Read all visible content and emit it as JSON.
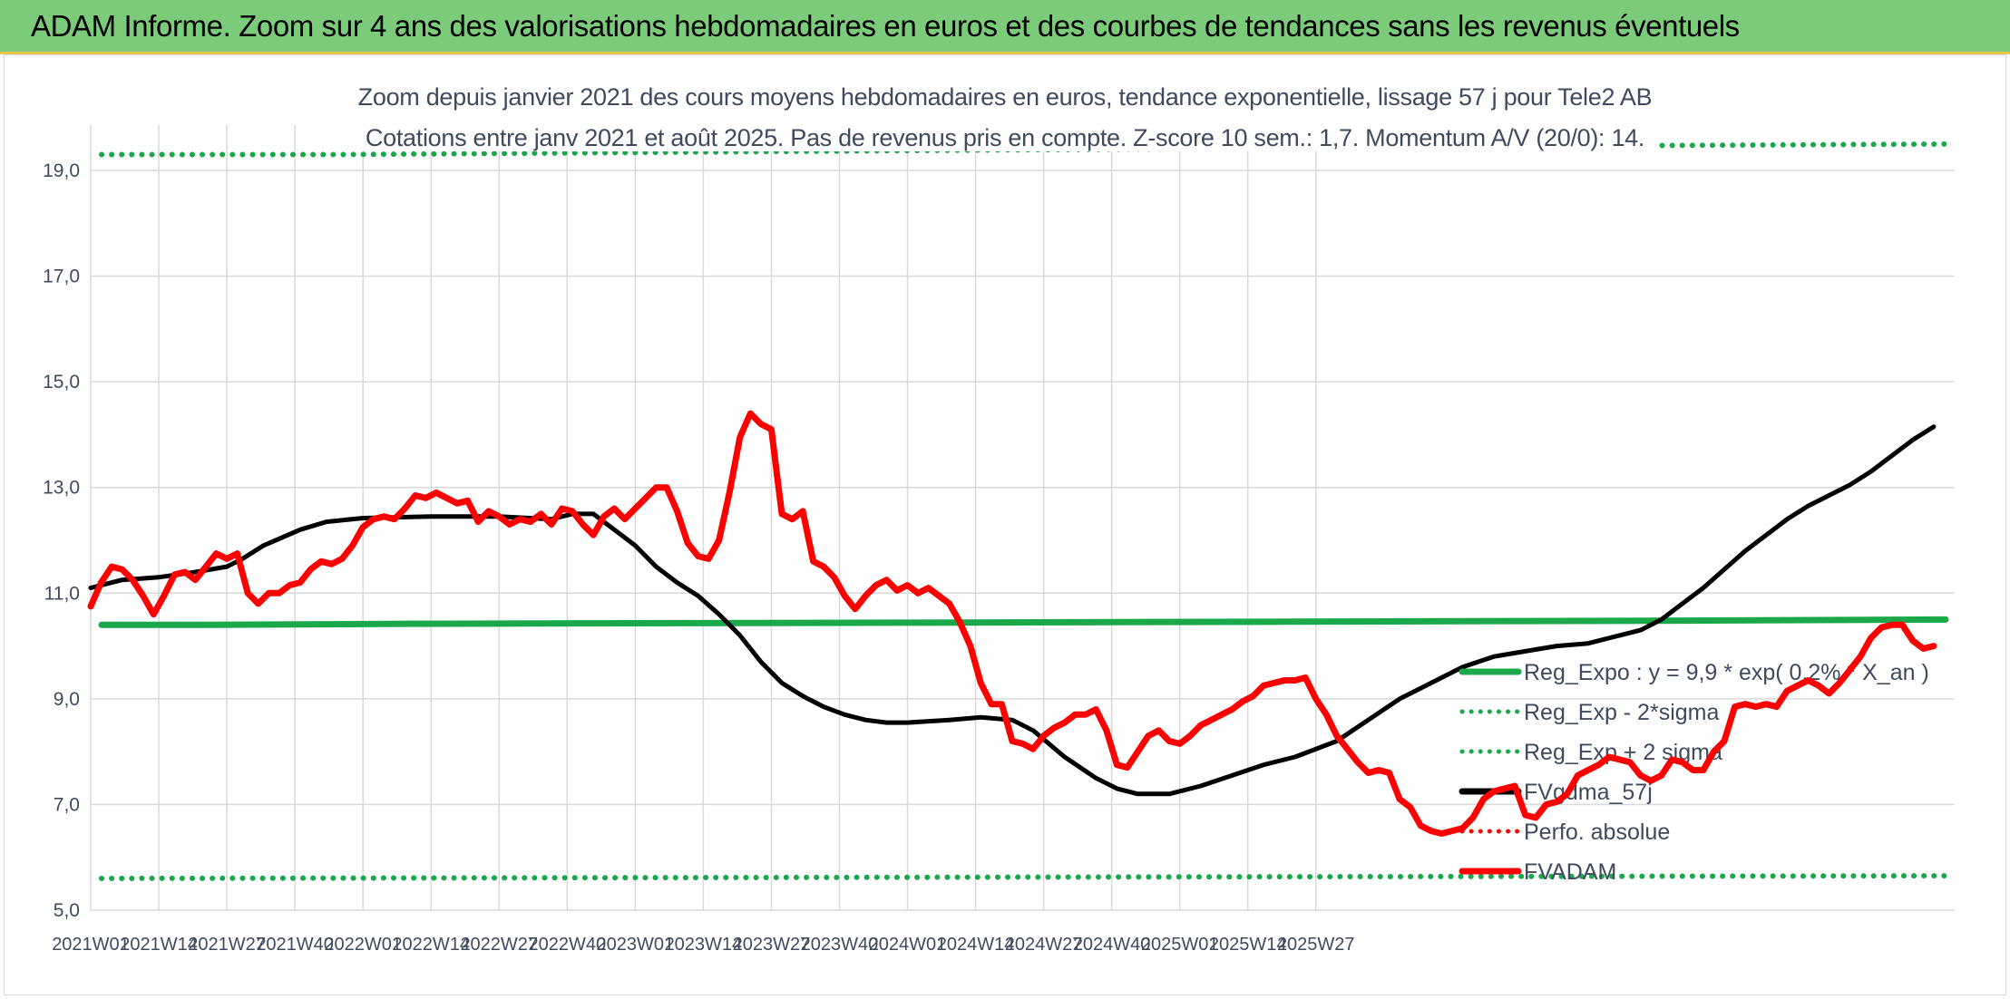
{
  "banner": {
    "title": "ADAM Informe. Zoom sur 4 ans des valorisations hebdomadaires en euros et des courbes de tendances sans les revenus éventuels"
  },
  "chart_data": {
    "type": "line",
    "title": "Zoom depuis janvier 2021 des cours moyens hebdomadaires en euros, tendance exponentielle, lissage 57 j pour Tele2 AB",
    "subtitle": "Cotations entre janv 2021 et août 2025. Pas de revenus pris en compte. Z-score 10 sem.: 1,7. Momentum A/V (20/0): 14.",
    "xlabel": "",
    "ylabel": "",
    "ylim": [
      5.0,
      19.0
    ],
    "yticks": [
      "5,0",
      "7,0",
      "9,0",
      "11,0",
      "13,0",
      "15,0",
      "17,0",
      "19,0"
    ],
    "xticks": [
      "2021W01",
      "2021W14",
      "2021W27",
      "2021W40",
      "2022W01",
      "2022W14",
      "2022W27",
      "2022W40",
      "2023W01",
      "2023W14",
      "2023W27",
      "2023W40",
      "2024W01",
      "2024W14",
      "2024W27",
      "2024W40",
      "2025W01",
      "2025W14",
      "2025W27"
    ],
    "grid": true,
    "legend_position": "right",
    "colors": {
      "reg_expo": "#1aa84a",
      "sigma": "#1aa84a",
      "fvgdma": "#000000",
      "perfo": "#e8120c",
      "fvadam": "#ff0000",
      "grid": "#d9d9d9"
    },
    "series": [
      {
        "name": "Reg_Expo : y = 9,9 * exp( 0,2% *  X_an )",
        "style": "solid",
        "points": [
          [
            0,
            10.4
          ],
          [
            14,
            10.4
          ],
          [
            40,
            10.42
          ],
          [
            104,
            10.44
          ],
          [
            156,
            10.46
          ],
          [
            208,
            10.48
          ],
          [
            242,
            10.5
          ]
        ]
      },
      {
        "name": "Reg_Exp - 2*sigma",
        "style": "dotted",
        "points": [
          [
            0,
            5.6
          ],
          [
            242,
            5.65
          ]
        ]
      },
      {
        "name": "Reg_Exp + 2 sigma",
        "style": "dotted",
        "points": [
          [
            0,
            19.3
          ],
          [
            31,
            19.3
          ],
          [
            202,
            19.47
          ],
          [
            242,
            19.5
          ]
        ]
      },
      {
        "name": "FVgdma_57j",
        "style": "solid",
        "points": [
          [
            0,
            11.1
          ],
          [
            6,
            11.25
          ],
          [
            13,
            11.3
          ],
          [
            20,
            11.4
          ],
          [
            26,
            11.5
          ],
          [
            29,
            11.65
          ],
          [
            33,
            11.9
          ],
          [
            40,
            12.2
          ],
          [
            45,
            12.35
          ],
          [
            52,
            12.42
          ],
          [
            65,
            12.45
          ],
          [
            78,
            12.45
          ],
          [
            88,
            12.4
          ],
          [
            92,
            12.5
          ],
          [
            96,
            12.5
          ],
          [
            100,
            12.2
          ],
          [
            104,
            11.9
          ],
          [
            108,
            11.5
          ],
          [
            112,
            11.2
          ],
          [
            116,
            10.95
          ],
          [
            120,
            10.6
          ],
          [
            124,
            10.2
          ],
          [
            128,
            9.7
          ],
          [
            132,
            9.3
          ],
          [
            136,
            9.05
          ],
          [
            140,
            8.85
          ],
          [
            144,
            8.7
          ],
          [
            148,
            8.6
          ],
          [
            152,
            8.55
          ],
          [
            156,
            8.55
          ],
          [
            164,
            8.6
          ],
          [
            170,
            8.65
          ],
          [
            176,
            8.6
          ],
          [
            180,
            8.4
          ],
          [
            186,
            7.9
          ],
          [
            192,
            7.5
          ],
          [
            196,
            7.3
          ],
          [
            200,
            7.2
          ],
          [
            206,
            7.2
          ],
          [
            212,
            7.35
          ],
          [
            218,
            7.55
          ],
          [
            224,
            7.75
          ],
          [
            230,
            7.9
          ],
          [
            238,
            8.2
          ],
          [
            244,
            8.6
          ],
          [
            250,
            9.0
          ],
          [
            256,
            9.3
          ],
          [
            262,
            9.6
          ],
          [
            268,
            9.8
          ],
          [
            274,
            9.9
          ],
          [
            280,
            10.0
          ],
          [
            286,
            10.05
          ],
          [
            292,
            10.2
          ],
          [
            296,
            10.3
          ],
          [
            300,
            10.5
          ],
          [
            304,
            10.8
          ],
          [
            308,
            11.1
          ],
          [
            312,
            11.45
          ],
          [
            316,
            11.8
          ],
          [
            320,
            12.1
          ],
          [
            324,
            12.4
          ],
          [
            328,
            12.65
          ],
          [
            332,
            12.85
          ],
          [
            336,
            13.05
          ],
          [
            340,
            13.3
          ],
          [
            344,
            13.6
          ],
          [
            348,
            13.9
          ],
          [
            352,
            14.15
          ]
        ]
      },
      {
        "name": "Perfo. absolue",
        "style": "dotted",
        "points": []
      },
      {
        "name": "FVADAM",
        "style": "solid",
        "points": [
          [
            0,
            10.75
          ],
          [
            2,
            11.2
          ],
          [
            4,
            11.5
          ],
          [
            6,
            11.45
          ],
          [
            8,
            11.25
          ],
          [
            10,
            10.95
          ],
          [
            12,
            10.6
          ],
          [
            14,
            10.95
          ],
          [
            16,
            11.35
          ],
          [
            18,
            11.4
          ],
          [
            20,
            11.25
          ],
          [
            22,
            11.5
          ],
          [
            24,
            11.75
          ],
          [
            26,
            11.65
          ],
          [
            28,
            11.75
          ],
          [
            30,
            11.0
          ],
          [
            32,
            10.8
          ],
          [
            34,
            11.0
          ],
          [
            36,
            11.0
          ],
          [
            38,
            11.15
          ],
          [
            40,
            11.2
          ],
          [
            42,
            11.45
          ],
          [
            44,
            11.6
          ],
          [
            46,
            11.55
          ],
          [
            48,
            11.65
          ],
          [
            50,
            11.9
          ],
          [
            52,
            12.25
          ],
          [
            54,
            12.4
          ],
          [
            56,
            12.45
          ],
          [
            58,
            12.4
          ],
          [
            60,
            12.6
          ],
          [
            62,
            12.85
          ],
          [
            64,
            12.8
          ],
          [
            66,
            12.9
          ],
          [
            68,
            12.8
          ],
          [
            70,
            12.7
          ],
          [
            72,
            12.75
          ],
          [
            74,
            12.35
          ],
          [
            76,
            12.55
          ],
          [
            78,
            12.45
          ],
          [
            80,
            12.3
          ],
          [
            82,
            12.4
          ],
          [
            84,
            12.35
          ],
          [
            86,
            12.5
          ],
          [
            88,
            12.3
          ],
          [
            90,
            12.6
          ],
          [
            92,
            12.55
          ],
          [
            94,
            12.3
          ],
          [
            96,
            12.1
          ],
          [
            98,
            12.45
          ],
          [
            100,
            12.6
          ],
          [
            102,
            12.4
          ],
          [
            104,
            12.6
          ],
          [
            106,
            12.8
          ],
          [
            108,
            13.0
          ],
          [
            110,
            13.0
          ],
          [
            112,
            12.55
          ],
          [
            114,
            11.95
          ],
          [
            116,
            11.7
          ],
          [
            118,
            11.65
          ],
          [
            120,
            12.0
          ],
          [
            122,
            12.9
          ],
          [
            124,
            13.95
          ],
          [
            126,
            14.4
          ],
          [
            128,
            14.2
          ],
          [
            130,
            14.1
          ],
          [
            132,
            12.5
          ],
          [
            134,
            12.4
          ],
          [
            136,
            12.55
          ],
          [
            138,
            11.6
          ],
          [
            140,
            11.5
          ],
          [
            142,
            11.3
          ],
          [
            144,
            10.95
          ],
          [
            146,
            10.7
          ],
          [
            148,
            10.95
          ],
          [
            150,
            11.15
          ],
          [
            152,
            11.25
          ],
          [
            154,
            11.05
          ],
          [
            156,
            11.15
          ],
          [
            158,
            11.0
          ],
          [
            160,
            11.1
          ],
          [
            162,
            10.95
          ],
          [
            164,
            10.8
          ],
          [
            166,
            10.45
          ],
          [
            168,
            10.0
          ],
          [
            170,
            9.3
          ],
          [
            172,
            8.9
          ],
          [
            174,
            8.9
          ],
          [
            176,
            8.2
          ],
          [
            178,
            8.15
          ],
          [
            180,
            8.05
          ],
          [
            182,
            8.3
          ],
          [
            184,
            8.45
          ],
          [
            186,
            8.55
          ],
          [
            188,
            8.7
          ],
          [
            190,
            8.7
          ],
          [
            192,
            8.8
          ],
          [
            194,
            8.4
          ],
          [
            196,
            7.75
          ],
          [
            198,
            7.7
          ],
          [
            200,
            8.0
          ],
          [
            202,
            8.3
          ],
          [
            204,
            8.4
          ],
          [
            206,
            8.2
          ],
          [
            208,
            8.15
          ],
          [
            210,
            8.3
          ],
          [
            212,
            8.5
          ],
          [
            214,
            8.6
          ],
          [
            216,
            8.7
          ],
          [
            218,
            8.8
          ],
          [
            220,
            8.95
          ],
          [
            222,
            9.05
          ],
          [
            224,
            9.25
          ],
          [
            226,
            9.3
          ],
          [
            228,
            9.35
          ],
          [
            230,
            9.35
          ],
          [
            232,
            9.4
          ],
          [
            234,
            9.0
          ],
          [
            236,
            8.7
          ],
          [
            238,
            8.3
          ],
          [
            240,
            8.05
          ],
          [
            242,
            7.8
          ],
          [
            244,
            7.6
          ],
          [
            246,
            7.65
          ],
          [
            248,
            7.6
          ],
          [
            250,
            7.1
          ],
          [
            252,
            6.95
          ],
          [
            254,
            6.6
          ],
          [
            256,
            6.5
          ],
          [
            258,
            6.45
          ],
          [
            260,
            6.5
          ],
          [
            262,
            6.55
          ],
          [
            264,
            6.75
          ],
          [
            266,
            7.1
          ],
          [
            268,
            7.25
          ],
          [
            270,
            7.3
          ],
          [
            272,
            7.35
          ],
          [
            274,
            6.8
          ],
          [
            276,
            6.75
          ],
          [
            278,
            7.0
          ],
          [
            280,
            7.05
          ],
          [
            282,
            7.2
          ],
          [
            284,
            7.55
          ],
          [
            286,
            7.65
          ],
          [
            288,
            7.75
          ],
          [
            290,
            7.9
          ],
          [
            292,
            7.85
          ],
          [
            294,
            7.8
          ],
          [
            296,
            7.55
          ],
          [
            298,
            7.45
          ],
          [
            300,
            7.55
          ],
          [
            302,
            7.85
          ],
          [
            304,
            7.8
          ],
          [
            306,
            7.65
          ],
          [
            308,
            7.65
          ],
          [
            310,
            8.0
          ],
          [
            312,
            8.2
          ],
          [
            314,
            8.85
          ],
          [
            316,
            8.9
          ],
          [
            318,
            8.85
          ],
          [
            320,
            8.9
          ],
          [
            322,
            8.85
          ],
          [
            324,
            9.15
          ],
          [
            326,
            9.25
          ],
          [
            328,
            9.35
          ],
          [
            330,
            9.25
          ],
          [
            332,
            9.1
          ],
          [
            334,
            9.3
          ],
          [
            336,
            9.55
          ],
          [
            338,
            9.8
          ],
          [
            340,
            10.15
          ],
          [
            342,
            10.35
          ],
          [
            344,
            10.4
          ],
          [
            346,
            10.4
          ],
          [
            348,
            10.1
          ],
          [
            350,
            9.95
          ],
          [
            352,
            10.0
          ]
        ]
      }
    ]
  },
  "legend": {
    "items": [
      {
        "label": "Reg_Expo : y = 9,9 * exp( 0,2% *  X_an )",
        "color": "#1aa84a",
        "style": "solid"
      },
      {
        "label": "Reg_Exp - 2*sigma",
        "color": "#1aa84a",
        "style": "dotted"
      },
      {
        "label": "Reg_Exp + 2 sigma",
        "color": "#1aa84a",
        "style": "dotted"
      },
      {
        "label": "FVgdma_57j",
        "color": "#000000",
        "style": "solid"
      },
      {
        "label": "Perfo. absolue",
        "color": "#e8120c",
        "style": "dotted"
      },
      {
        "label": "FVADAM",
        "color": "#ff0000",
        "style": "solid"
      }
    ]
  }
}
